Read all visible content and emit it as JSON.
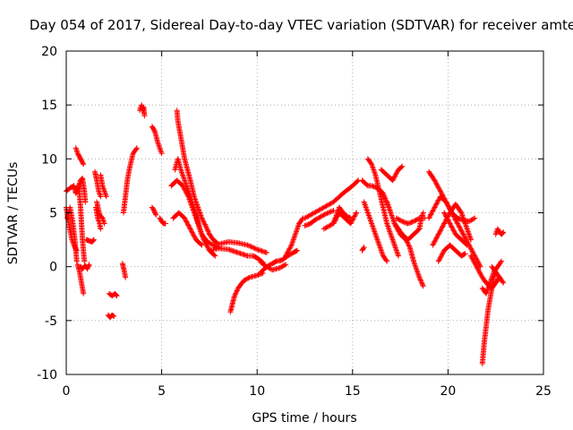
{
  "chart_data": {
    "type": "scatter",
    "title": "Day 054 of 2017, Sidereal Day-to-day VTEC variation (SDTVAR) for receiver amte",
    "xlabel": "GPS time / hours",
    "ylabel": "SDTVAR / TECUs",
    "xlim": [
      0,
      25
    ],
    "ylim": [
      -10,
      20
    ],
    "xticks": [
      0,
      5,
      10,
      15,
      20,
      25
    ],
    "yticks": [
      -10,
      -5,
      0,
      5,
      10,
      15,
      20
    ],
    "grid": true,
    "marker": "+",
    "color": "#ff0000",
    "tracks": [
      [
        [
          0.0,
          7.0
        ],
        [
          0.2,
          7.3
        ],
        [
          0.4,
          7.5
        ],
        [
          0.5,
          6.8
        ],
        [
          0.6,
          7.2
        ],
        [
          0.75,
          8.0
        ],
        [
          0.85,
          8.2
        ],
        [
          0.95,
          7.0
        ],
        [
          1.0,
          6.0
        ]
      ],
      [
        [
          0.0,
          5.5
        ],
        [
          0.15,
          3.8
        ],
        [
          0.3,
          2.5
        ],
        [
          0.45,
          1.8
        ],
        [
          0.55,
          1.5
        ]
      ],
      [
        [
          0.05,
          4.5
        ],
        [
          0.2,
          5.5
        ],
        [
          0.35,
          4.0
        ],
        [
          0.45,
          2.5
        ],
        [
          0.55,
          0.5
        ]
      ],
      [
        [
          0.5,
          11.0
        ],
        [
          0.6,
          10.5
        ],
        [
          0.75,
          10.0
        ],
        [
          0.9,
          9.5
        ]
      ],
      [
        [
          0.65,
          7.5
        ],
        [
          0.75,
          5.5
        ],
        [
          0.8,
          4.0
        ],
        [
          0.85,
          2.5
        ],
        [
          0.9,
          1.5
        ],
        [
          0.95,
          0.5
        ]
      ],
      [
        [
          0.6,
          0.2
        ],
        [
          0.7,
          -0.5
        ],
        [
          0.8,
          -1.5
        ],
        [
          0.9,
          -2.5
        ]
      ],
      [
        [
          0.75,
          0.0
        ],
        [
          0.85,
          -0.2
        ],
        [
          1.0,
          0.1
        ],
        [
          1.1,
          -0.2
        ],
        [
          1.2,
          0.2
        ]
      ],
      [
        [
          1.05,
          2.5
        ],
        [
          1.2,
          2.4
        ],
        [
          1.35,
          2.3
        ],
        [
          1.45,
          2.5
        ]
      ],
      [
        [
          1.5,
          8.8
        ],
        [
          1.6,
          8.0
        ],
        [
          1.7,
          7.0
        ],
        [
          1.8,
          6.5
        ]
      ],
      [
        [
          1.8,
          8.5
        ],
        [
          1.9,
          7.5
        ],
        [
          2.0,
          7.0
        ],
        [
          2.1,
          6.5
        ]
      ],
      [
        [
          1.55,
          5.5
        ],
        [
          1.65,
          4.5
        ],
        [
          1.75,
          4.0
        ],
        [
          1.8,
          3.5
        ]
      ],
      [
        [
          1.6,
          6.0
        ],
        [
          1.75,
          4.8
        ],
        [
          1.9,
          4.5
        ],
        [
          2.0,
          4.0
        ]
      ],
      [
        [
          2.2,
          -4.5
        ],
        [
          2.3,
          -4.7
        ],
        [
          2.4,
          -4.5
        ],
        [
          2.5,
          -4.6
        ]
      ],
      [
        [
          2.25,
          -2.5
        ],
        [
          2.4,
          -2.7
        ],
        [
          2.55,
          -2.5
        ],
        [
          2.65,
          -2.7
        ]
      ],
      [
        [
          2.95,
          0.3
        ],
        [
          3.05,
          -0.5
        ],
        [
          3.1,
          -1.0
        ]
      ],
      [
        [
          3.0,
          5.0
        ],
        [
          3.1,
          6.5
        ],
        [
          3.2,
          8.0
        ],
        [
          3.3,
          9.0
        ],
        [
          3.5,
          10.5
        ],
        [
          3.7,
          11.0
        ]
      ],
      [
        [
          3.85,
          14.5
        ],
        [
          3.95,
          15.0
        ],
        [
          4.0,
          14.5
        ],
        [
          4.05,
          14.8
        ],
        [
          4.1,
          14.0
        ]
      ],
      [
        [
          4.5,
          13.0
        ],
        [
          4.65,
          12.5
        ],
        [
          4.8,
          11.5
        ],
        [
          4.9,
          11.0
        ],
        [
          5.0,
          10.5
        ]
      ],
      [
        [
          4.5,
          5.5
        ],
        [
          4.6,
          5.2
        ],
        [
          4.7,
          4.8
        ]
      ],
      [
        [
          4.9,
          4.5
        ],
        [
          5.0,
          4.2
        ],
        [
          5.1,
          4.0
        ],
        [
          5.2,
          4.0
        ]
      ],
      [
        [
          5.8,
          14.5
        ],
        [
          5.85,
          13.5
        ],
        [
          5.95,
          12.5
        ],
        [
          6.1,
          11.0
        ],
        [
          6.2,
          10.0
        ],
        [
          6.35,
          9.0
        ],
        [
          6.5,
          8.0
        ],
        [
          6.7,
          6.5
        ],
        [
          6.9,
          5.5
        ],
        [
          7.1,
          4.5
        ],
        [
          7.3,
          3.8
        ],
        [
          7.5,
          3.0
        ],
        [
          7.7,
          2.5
        ],
        [
          7.9,
          2.2
        ]
      ],
      [
        [
          5.7,
          9.0
        ],
        [
          5.85,
          10.0
        ],
        [
          6.0,
          9.0
        ],
        [
          6.2,
          8.0
        ],
        [
          6.4,
          7.0
        ],
        [
          6.6,
          6.0
        ],
        [
          6.8,
          4.8
        ],
        [
          7.0,
          3.5
        ],
        [
          7.2,
          2.5
        ],
        [
          7.5,
          1.5
        ],
        [
          7.8,
          1.0
        ]
      ],
      [
        [
          5.5,
          7.5
        ],
        [
          5.8,
          8.0
        ],
        [
          6.1,
          7.5
        ],
        [
          6.4,
          6.5
        ],
        [
          6.7,
          5.0
        ],
        [
          6.9,
          4.0
        ],
        [
          7.1,
          3.0
        ],
        [
          7.4,
          2.3
        ],
        [
          7.7,
          2.0
        ],
        [
          8.0,
          1.8
        ]
      ],
      [
        [
          5.6,
          4.5
        ],
        [
          5.9,
          5.0
        ],
        [
          6.2,
          4.5
        ],
        [
          6.5,
          3.5
        ],
        [
          6.8,
          2.5
        ],
        [
          7.1,
          2.0
        ]
      ],
      [
        [
          7.5,
          1.5
        ],
        [
          8.0,
          1.7
        ],
        [
          8.5,
          1.6
        ],
        [
          9.0,
          1.3
        ],
        [
          9.5,
          1.0
        ],
        [
          9.8,
          1.0
        ],
        [
          10.0,
          0.8
        ],
        [
          10.3,
          0.4
        ]
      ],
      [
        [
          8.0,
          2.1
        ],
        [
          8.5,
          2.3
        ],
        [
          9.0,
          2.2
        ],
        [
          9.5,
          2.0
        ],
        [
          10.0,
          1.6
        ],
        [
          10.5,
          1.3
        ]
      ],
      [
        [
          8.6,
          -4.2
        ],
        [
          8.7,
          -3.5
        ],
        [
          8.8,
          -2.8
        ],
        [
          9.0,
          -2.0
        ],
        [
          9.3,
          -1.3
        ],
        [
          9.6,
          -1.0
        ],
        [
          10.0,
          -0.8
        ],
        [
          10.3,
          -0.6
        ]
      ],
      [
        [
          10.2,
          -0.5
        ],
        [
          10.5,
          0.0
        ],
        [
          10.8,
          0.3
        ],
        [
          11.0,
          0.5
        ],
        [
          11.3,
          0.6
        ],
        [
          11.6,
          1.0
        ],
        [
          11.9,
          1.3
        ],
        [
          12.1,
          1.5
        ]
      ],
      [
        [
          10.2,
          0.4
        ],
        [
          10.5,
          0.0
        ],
        [
          10.8,
          -0.3
        ],
        [
          11.2,
          -0.1
        ],
        [
          11.5,
          0.2
        ]
      ],
      [
        [
          11.5,
          1.0
        ],
        [
          11.8,
          2.0
        ],
        [
          12.0,
          3.0
        ],
        [
          12.2,
          4.0
        ],
        [
          12.4,
          4.5
        ]
      ],
      [
        [
          12.5,
          3.8
        ],
        [
          12.8,
          4.0
        ],
        [
          13.0,
          4.3
        ],
        [
          13.3,
          4.6
        ],
        [
          13.6,
          4.9
        ],
        [
          14.0,
          5.2
        ]
      ],
      [
        [
          12.5,
          4.5
        ],
        [
          13.0,
          5.0
        ],
        [
          13.5,
          5.5
        ],
        [
          14.0,
          6.0
        ],
        [
          14.5,
          6.8
        ],
        [
          15.0,
          7.5
        ],
        [
          15.3,
          8.0
        ]
      ],
      [
        [
          13.5,
          3.5
        ],
        [
          14.0,
          4.0
        ],
        [
          14.3,
          5.0
        ],
        [
          14.6,
          4.5
        ],
        [
          14.9,
          4.0
        ],
        [
          15.2,
          5.0
        ]
      ],
      [
        [
          14.0,
          4.0
        ],
        [
          14.3,
          5.5
        ],
        [
          14.6,
          4.8
        ],
        [
          14.9,
          4.5
        ]
      ],
      [
        [
          15.5,
          1.5
        ],
        [
          15.6,
          1.8
        ]
      ],
      [
        [
          15.5,
          8.0
        ],
        [
          15.8,
          7.5
        ],
        [
          16.0,
          7.5
        ],
        [
          16.3,
          7.3
        ],
        [
          16.6,
          6.8
        ],
        [
          16.9,
          5.5
        ],
        [
          17.2,
          4.0
        ],
        [
          17.5,
          3.0
        ],
        [
          17.8,
          2.5
        ],
        [
          18.0,
          1.8
        ],
        [
          18.2,
          0.5
        ],
        [
          18.5,
          -1.0
        ],
        [
          18.7,
          -1.8
        ]
      ],
      [
        [
          15.8,
          10.0
        ],
        [
          16.0,
          9.5
        ],
        [
          16.2,
          8.5
        ],
        [
          16.4,
          7.0
        ],
        [
          16.6,
          5.5
        ],
        [
          16.8,
          4.0
        ],
        [
          17.0,
          3.0
        ],
        [
          17.2,
          2.0
        ],
        [
          17.4,
          1.0
        ]
      ],
      [
        [
          15.6,
          6.0
        ],
        [
          15.8,
          5.0
        ],
        [
          16.0,
          4.0
        ],
        [
          16.2,
          3.0
        ],
        [
          16.4,
          2.0
        ],
        [
          16.6,
          1.0
        ],
        [
          16.8,
          0.5
        ]
      ],
      [
        [
          16.5,
          9.0
        ],
        [
          16.8,
          8.5
        ],
        [
          17.1,
          8.0
        ],
        [
          17.4,
          9.0
        ],
        [
          17.6,
          9.3
        ]
      ],
      [
        [
          16.8,
          6.0
        ],
        [
          17.0,
          5.0
        ],
        [
          17.2,
          4.0
        ],
        [
          17.4,
          3.5
        ],
        [
          17.6,
          3.0
        ],
        [
          17.9,
          2.5
        ],
        [
          18.2,
          3.0
        ],
        [
          18.5,
          3.5
        ]
      ],
      [
        [
          17.3,
          4.5
        ],
        [
          17.6,
          4.2
        ],
        [
          17.9,
          4.0
        ],
        [
          18.2,
          4.2
        ],
        [
          18.5,
          4.5
        ],
        [
          18.8,
          4.5
        ]
      ],
      [
        [
          18.5,
          3.5
        ],
        [
          18.6,
          4.5
        ],
        [
          18.7,
          5.0
        ]
      ],
      [
        [
          19.0,
          8.8
        ],
        [
          19.3,
          8.0
        ],
        [
          19.6,
          7.0
        ],
        [
          19.9,
          6.0
        ],
        [
          20.2,
          5.0
        ],
        [
          20.5,
          4.0
        ],
        [
          20.8,
          3.0
        ],
        [
          21.1,
          2.0
        ],
        [
          21.4,
          1.0
        ],
        [
          21.7,
          0.0
        ]
      ],
      [
        [
          19.0,
          4.5
        ],
        [
          19.3,
          5.5
        ],
        [
          19.6,
          6.5
        ],
        [
          19.9,
          6.0
        ],
        [
          20.2,
          5.0
        ],
        [
          20.5,
          4.5
        ],
        [
          20.8,
          4.3
        ],
        [
          21.1,
          4.2
        ],
        [
          21.4,
          4.5
        ]
      ],
      [
        [
          19.2,
          2.0
        ],
        [
          19.5,
          3.0
        ],
        [
          19.8,
          4.0
        ],
        [
          20.1,
          5.0
        ],
        [
          20.4,
          5.8
        ],
        [
          20.7,
          5.0
        ],
        [
          21.0,
          3.5
        ],
        [
          21.2,
          2.5
        ]
      ],
      [
        [
          19.5,
          0.5
        ],
        [
          19.8,
          1.5
        ],
        [
          20.1,
          2.0
        ],
        [
          20.4,
          1.5
        ],
        [
          20.7,
          1.0
        ],
        [
          20.9,
          1.2
        ]
      ],
      [
        [
          19.8,
          5.0
        ],
        [
          20.1,
          4.0
        ],
        [
          20.4,
          3.0
        ],
        [
          20.7,
          2.5
        ],
        [
          21.0,
          2.0
        ]
      ],
      [
        [
          21.2,
          1.0
        ],
        [
          21.5,
          0.0
        ],
        [
          21.8,
          -1.0
        ],
        [
          22.0,
          -1.5
        ],
        [
          22.3,
          -2.0
        ],
        [
          22.5,
          -1.5
        ],
        [
          22.7,
          -1.0
        ]
      ],
      [
        [
          21.8,
          -9.0
        ],
        [
          21.85,
          -8.0
        ],
        [
          21.9,
          -7.0
        ],
        [
          22.0,
          -5.5
        ],
        [
          22.1,
          -4.0
        ],
        [
          22.2,
          -3.0
        ],
        [
          22.3,
          -2.0
        ],
        [
          22.4,
          -1.0
        ],
        [
          22.5,
          -0.5
        ]
      ],
      [
        [
          21.8,
          -2.0
        ],
        [
          22.0,
          -2.5
        ],
        [
          22.2,
          -1.5
        ],
        [
          22.4,
          -0.5
        ],
        [
          22.6,
          0.0
        ],
        [
          22.8,
          0.5
        ]
      ],
      [
        [
          22.3,
          0.0
        ],
        [
          22.5,
          -0.5
        ],
        [
          22.7,
          -1.0
        ],
        [
          22.9,
          -1.5
        ]
      ],
      [
        [
          22.5,
          3.0
        ],
        [
          22.6,
          3.5
        ],
        [
          22.7,
          3.2
        ],
        [
          22.8,
          3.0
        ],
        [
          22.9,
          3.2
        ]
      ]
    ]
  }
}
